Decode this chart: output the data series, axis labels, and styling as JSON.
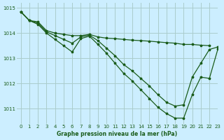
{
  "title": "Graphe pression niveau de la mer (hPa)",
  "background_color": "#cceeff",
  "grid_color": "#aacccc",
  "line_color": "#1a5c1a",
  "xlim": [
    -0.5,
    23
  ],
  "ylim": [
    1010.4,
    1015.2
  ],
  "xticks": [
    0,
    1,
    2,
    3,
    4,
    5,
    6,
    7,
    8,
    9,
    10,
    11,
    12,
    13,
    14,
    15,
    16,
    17,
    18,
    19,
    20,
    21,
    22,
    23
  ],
  "yticks": [
    1011,
    1012,
    1013,
    1014,
    1015
  ],
  "series1_x": [
    0,
    1,
    2,
    3,
    4,
    5,
    6,
    7,
    8,
    9,
    10,
    11,
    12,
    13,
    14,
    15,
    16,
    17,
    18,
    19,
    20,
    21,
    22
  ],
  "series1_y": [
    1014.85,
    1014.5,
    1014.45,
    1014.1,
    1014.0,
    1013.95,
    1013.9,
    1013.9,
    1013.95,
    1013.85,
    1013.8,
    1013.78,
    1013.75,
    1013.72,
    1013.7,
    1013.68,
    1013.65,
    1013.62,
    1013.6,
    1013.55,
    1013.55,
    1013.52,
    1013.5
  ],
  "series2_x": [
    0,
    1,
    2,
    3,
    4,
    5,
    6,
    7,
    8,
    9,
    10,
    11,
    12,
    13,
    14,
    15,
    16,
    17,
    18,
    19,
    20,
    21,
    22,
    23
  ],
  "series2_y": [
    1014.85,
    1014.5,
    1014.4,
    1014.05,
    1013.9,
    1013.75,
    1013.6,
    1013.85,
    1013.92,
    1013.7,
    1013.4,
    1013.1,
    1012.75,
    1012.5,
    1012.2,
    1011.9,
    1011.55,
    1011.25,
    1011.1,
    1011.15,
    1012.25,
    1012.8,
    1013.35,
    1013.45
  ],
  "series3_x": [
    0,
    1,
    2,
    3,
    4,
    5,
    6,
    7,
    8,
    9,
    10,
    11,
    12,
    13,
    14,
    15,
    16,
    17,
    18,
    19,
    20,
    21,
    22,
    23
  ],
  "series3_y": [
    1014.85,
    1014.5,
    1014.35,
    1014.0,
    1013.75,
    1013.5,
    1013.25,
    1013.78,
    1013.88,
    1013.55,
    1013.2,
    1012.8,
    1012.4,
    1012.1,
    1011.75,
    1011.4,
    1011.05,
    1010.8,
    1010.62,
    1010.62,
    1011.55,
    1012.25,
    1012.2,
    1013.38
  ]
}
